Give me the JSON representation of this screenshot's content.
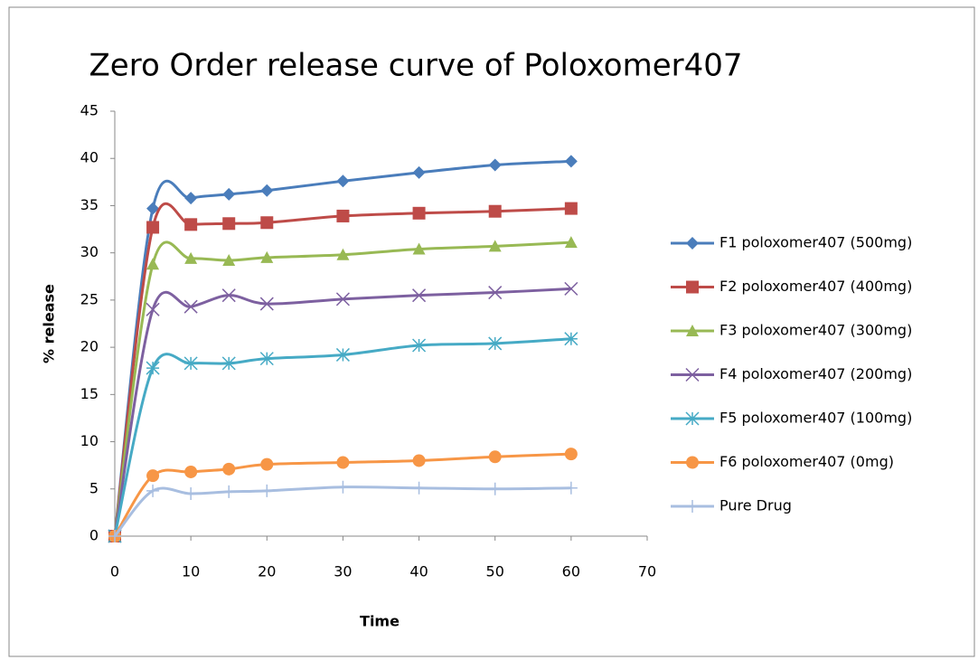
{
  "chart_data": {
    "type": "line",
    "title": "Zero Order release curve of Poloxomer407",
    "xlabel": "Time",
    "ylabel": "% release",
    "x": [
      0,
      5,
      10,
      15,
      20,
      30,
      40,
      50,
      60
    ],
    "xlim": [
      0,
      70
    ],
    "xticks": [
      0,
      10,
      20,
      30,
      40,
      50,
      60,
      70
    ],
    "ylim": [
      0,
      45
    ],
    "yticks": [
      0,
      5,
      10,
      15,
      20,
      25,
      30,
      35,
      40,
      45
    ],
    "grid": false,
    "legend": "right",
    "smooth": true,
    "series": [
      {
        "name": "F1 poloxomer407 (500mg)",
        "color": "#4a7dbb",
        "marker": "diamond",
        "values": [
          0,
          34.7,
          35.8,
          36.2,
          36.6,
          37.6,
          38.5,
          39.3,
          39.7
        ]
      },
      {
        "name": "F2 poloxomer407 (400mg)",
        "color": "#be4b48",
        "marker": "square",
        "values": [
          0,
          32.7,
          33.0,
          33.1,
          33.2,
          33.9,
          34.2,
          34.4,
          34.7
        ]
      },
      {
        "name": "F3 poloxomer407 (300mg)",
        "color": "#98b954",
        "marker": "triangle",
        "values": [
          0,
          28.8,
          29.4,
          29.2,
          29.5,
          29.8,
          30.4,
          30.7,
          31.1
        ]
      },
      {
        "name": "F4 poloxomer407 (200mg)",
        "color": "#7d60a0",
        "marker": "x",
        "values": [
          0,
          24.0,
          24.3,
          25.5,
          24.6,
          25.1,
          25.5,
          25.8,
          26.2
        ]
      },
      {
        "name": "F5 poloxomer407 (100mg)",
        "color": "#46aac5",
        "marker": "star",
        "values": [
          0,
          17.8,
          18.3,
          18.3,
          18.8,
          19.2,
          20.2,
          20.4,
          20.9
        ]
      },
      {
        "name": "F6 poloxomer407 (0mg)",
        "color": "#f79646",
        "marker": "circle",
        "values": [
          0,
          6.4,
          6.8,
          7.1,
          7.6,
          7.8,
          8.0,
          8.4,
          8.7
        ]
      },
      {
        "name": "Pure Drug",
        "color": "#a8bee0",
        "marker": "plus",
        "values": [
          0,
          4.8,
          4.5,
          4.7,
          4.8,
          5.2,
          5.1,
          5.0,
          5.1
        ]
      }
    ]
  }
}
